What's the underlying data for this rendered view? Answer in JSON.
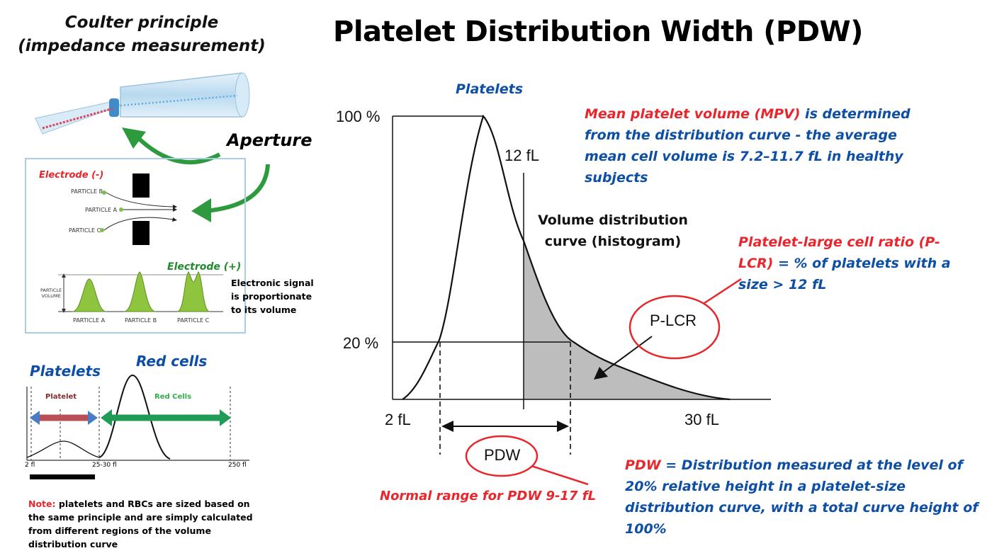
{
  "title": "Platelet Distribution Width (PDW)",
  "coulter": {
    "title_line1": "Coulter principle",
    "title_line2": "(impedance measurement)",
    "aperture": "Aperture",
    "electrode_neg": "Electrode (-)",
    "electrode_pos": "Electrode (+)",
    "particles": [
      "PARTICLE B",
      "PARTICLE A",
      "PARTICLE C"
    ],
    "volume_axis": [
      "PARTICLE",
      "VOLUME"
    ],
    "peak_labels": [
      "PARTICLE A",
      "PARTICLE B",
      "PARTICLE C"
    ],
    "signal_text": [
      "Electronic signal",
      "is proportionate",
      "to its volume"
    ]
  },
  "mini_curve": {
    "platelets_label": "Platelets",
    "red_cells_label": "Red cells",
    "platelet_arrow": "Platelet",
    "red_arrow": "Red Cells",
    "ticks": [
      "2 fl",
      "25-30 fl",
      "250 fl"
    ]
  },
  "note": {
    "prefix": "Note:",
    "text": " platelets and RBCs are  sized based on the same principle and are simply calculated from different regions of the volume distribution curve"
  },
  "histogram": {
    "platelets_label": "Platelets",
    "y_ticks": [
      "100 %",
      "20 %"
    ],
    "x_ticks": [
      "2 fL",
      "30 fL"
    ],
    "threshold_label": "12 fL",
    "curve_label": [
      "Volume distribution",
      "curve (histogram)"
    ],
    "plcr_label": "P-LCR",
    "pdw_label": "PDW"
  },
  "mpv": {
    "red_part": "Mean platelet volume (MPV)",
    "blue_part": " is determined from the distribution curve - the average mean cell volume is 7.2–11.7 fL in healthy subjects"
  },
  "plcr_def": {
    "red_part": "Platelet-large cell ratio (P-LCR)",
    "blue_part": " = % of platelets with a size > 12 fL"
  },
  "pdw_def": {
    "red_part": "PDW",
    "blue_part": " = Distribution measured at the level of 20% relative height in a platelet-size distribution curve, with a total curve height of 100%"
  },
  "normal_range": "Normal range for PDW 9-17 fL",
  "colors": {
    "red": "#e8262c",
    "blue": "#0d4ea6",
    "green": "#2e9a3e",
    "shade": "#bdbdbd"
  }
}
